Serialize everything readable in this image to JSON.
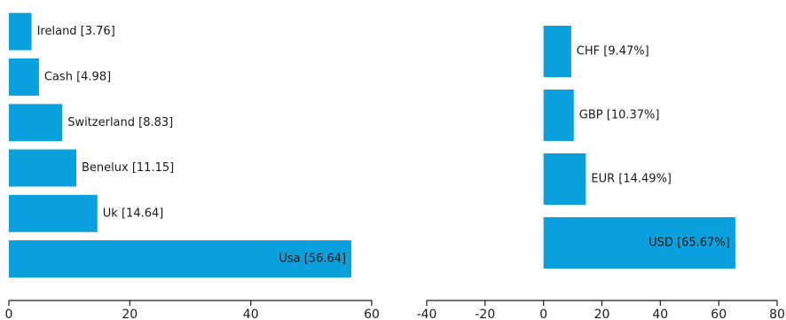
{
  "colors": {
    "bar": "#0aa0de",
    "text": "#1a1a1a",
    "axis": "#1a1a1a"
  },
  "chart_data": [
    {
      "type": "bar",
      "orientation": "horizontal",
      "title": "",
      "xlabel": "",
      "ylabel": "",
      "grid": false,
      "xlim": [
        0,
        60
      ],
      "x_ticks": [
        "0",
        "20",
        "40",
        "60"
      ],
      "categories": [
        "Ireland",
        "Cash",
        "Switzerland",
        "Benelux",
        "Uk",
        "Usa"
      ],
      "values": [
        3.76,
        4.98,
        8.83,
        11.15,
        14.64,
        56.64
      ],
      "data_labels": [
        "Ireland [3.76]",
        "Cash [4.98]",
        "Switzerland [8.83]",
        "Benelux [11.15]",
        "Uk [14.64]",
        "Usa [56.64]"
      ]
    },
    {
      "type": "bar",
      "orientation": "horizontal",
      "title": "",
      "xlabel": "",
      "ylabel": "",
      "grid": false,
      "xlim": [
        -40,
        80
      ],
      "x_ticks": [
        "-40",
        "-20",
        "0",
        "20",
        "40",
        "60",
        "80"
      ],
      "categories": [
        "CHF",
        "GBP",
        "EUR",
        "USD"
      ],
      "values": [
        9.47,
        10.37,
        14.49,
        65.67
      ],
      "data_labels": [
        "CHF [9.47%]",
        "GBP [10.37%]",
        "EUR [14.49%]",
        "USD [65.67%]"
      ]
    }
  ]
}
